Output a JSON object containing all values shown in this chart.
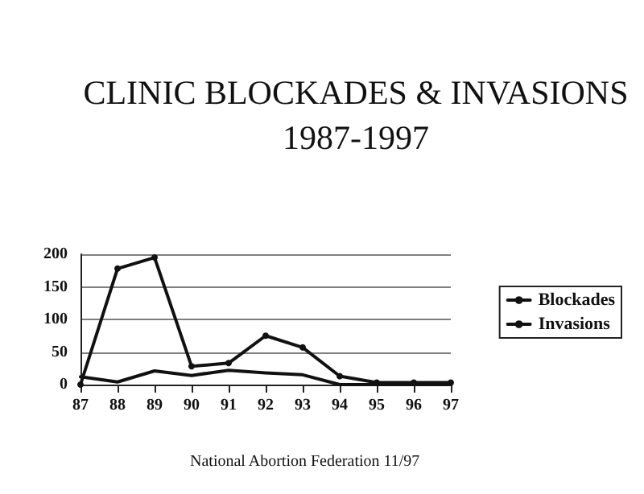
{
  "chart_data": {
    "type": "line",
    "title": "CLINIC BLOCKADES & INVASIONS",
    "subtitle": "1987-1997",
    "categories": [
      "87",
      "88",
      "89",
      "90",
      "91",
      "92",
      "93",
      "94",
      "95",
      "96",
      "97"
    ],
    "series": [
      {
        "name": "Blockades",
        "color": "#111111",
        "marker": "circle",
        "values": [
          0,
          178,
          195,
          28,
          33,
          75,
          57,
          13,
          3,
          3,
          3
        ]
      },
      {
        "name": "Invasions",
        "color": "#111111",
        "marker": "none",
        "values": [
          12,
          4,
          21,
          14,
          22,
          18,
          15,
          0,
          0,
          0,
          0
        ]
      }
    ],
    "ylim": [
      0,
      200
    ],
    "yticks": [
      0,
      50,
      100,
      150,
      200
    ],
    "grid": "y",
    "legend": "right",
    "line_style": "solid",
    "annotations": [
      "National Abortion Federation 11/97"
    ]
  }
}
